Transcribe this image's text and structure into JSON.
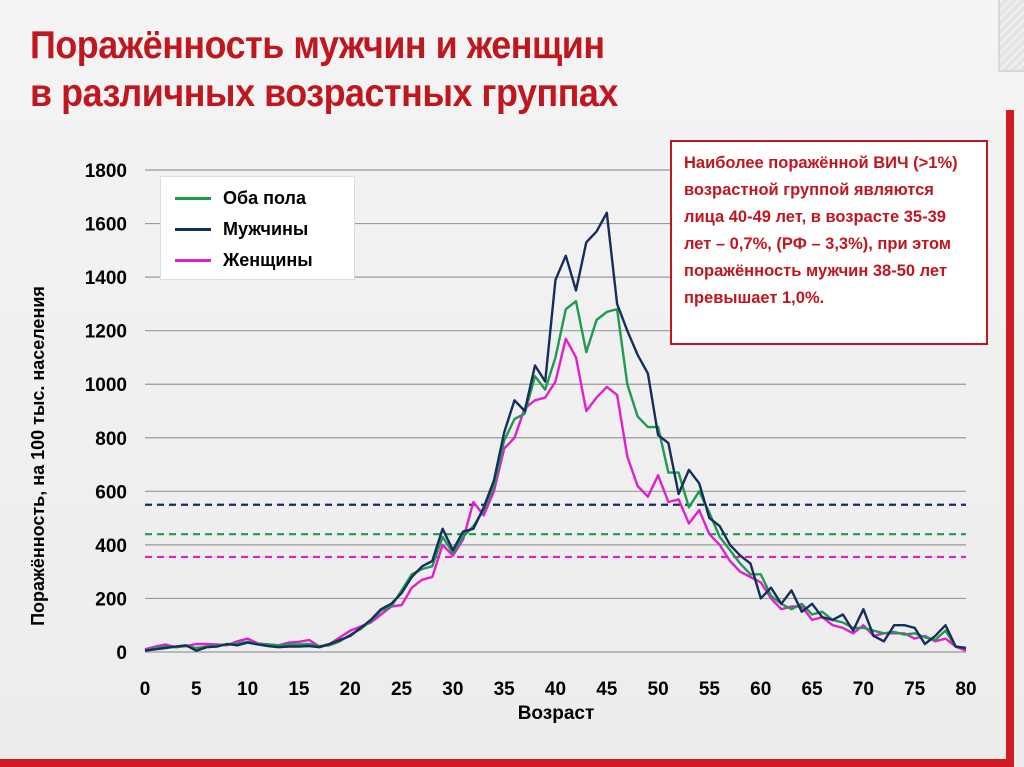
{
  "slide": {
    "title_line1": "Поражённость мужчин и женщин",
    "title_line2": "в различных возрастных группах",
    "infobox_text": "Наиболее поражённой ВИЧ (>1%) возрастной группой являются лица 40-49 лет, в возрасте 35-39 лет – 0,7%, (РФ – 3,3%),  при этом поражённость мужчин 38-50 лет превышает 1,0%."
  },
  "colors": {
    "accent_red": "#c0161e",
    "both": "#1f9a4f",
    "men": "#152f5c",
    "women": "#e020d0"
  },
  "chart_data": {
    "type": "line",
    "title": "",
    "xlabel": "Возраст",
    "ylabel": "Поражённость, на 100 тыс. населения",
    "xlim": [
      0,
      80
    ],
    "ylim": [
      0,
      1800
    ],
    "xticks": [
      0,
      5,
      10,
      15,
      20,
      25,
      30,
      35,
      40,
      45,
      50,
      55,
      60,
      65,
      70,
      75,
      80
    ],
    "yticks": [
      0,
      200,
      400,
      600,
      800,
      1000,
      1200,
      1400,
      1600,
      1800
    ],
    "grid": "horizontal",
    "legend": "top-left",
    "series": [
      {
        "name": "Оба пола",
        "color": "#1f9a4f",
        "x": [
          0,
          1,
          2,
          3,
          4,
          5,
          6,
          7,
          8,
          9,
          10,
          11,
          12,
          13,
          14,
          15,
          16,
          17,
          18,
          19,
          20,
          21,
          22,
          23,
          24,
          25,
          26,
          27,
          28,
          29,
          30,
          31,
          32,
          33,
          34,
          35,
          36,
          37,
          38,
          39,
          40,
          41,
          42,
          43,
          44,
          45,
          46,
          47,
          48,
          49,
          50,
          51,
          52,
          53,
          54,
          55,
          56,
          57,
          58,
          59,
          60,
          61,
          62,
          63,
          64,
          65,
          66,
          67,
          68,
          69,
          70,
          71,
          72,
          73,
          74,
          75,
          76,
          77,
          78,
          79,
          80
        ],
        "values": [
          5,
          15,
          20,
          18,
          22,
          15,
          20,
          25,
          28,
          32,
          38,
          30,
          28,
          25,
          28,
          28,
          30,
          22,
          25,
          40,
          65,
          85,
          115,
          155,
          170,
          230,
          290,
          310,
          320,
          430,
          370,
          430,
          470,
          530,
          620,
          790,
          870,
          890,
          1030,
          980,
          1100,
          1280,
          1310,
          1120,
          1240,
          1270,
          1280,
          1000,
          880,
          840,
          840,
          670,
          670,
          540,
          600,
          520,
          430,
          380,
          330,
          290,
          290,
          210,
          180,
          160,
          180,
          140,
          150,
          120,
          110,
          90,
          90,
          80,
          70,
          75,
          65,
          70,
          55,
          45,
          80,
          20,
          15
        ]
      },
      {
        "name": "Мужчины",
        "color": "#152f5c",
        "x": [
          0,
          1,
          2,
          3,
          4,
          5,
          6,
          7,
          8,
          9,
          10,
          11,
          12,
          13,
          14,
          15,
          16,
          17,
          18,
          19,
          20,
          21,
          22,
          23,
          24,
          25,
          26,
          27,
          28,
          29,
          30,
          31,
          32,
          33,
          34,
          35,
          36,
          37,
          38,
          39,
          40,
          41,
          42,
          43,
          44,
          45,
          46,
          47,
          48,
          49,
          50,
          51,
          52,
          53,
          54,
          55,
          56,
          57,
          58,
          59,
          60,
          61,
          62,
          63,
          64,
          65,
          66,
          67,
          68,
          69,
          70,
          71,
          72,
          73,
          74,
          75,
          76,
          77,
          78,
          79,
          80
        ],
        "values": [
          5,
          10,
          15,
          20,
          25,
          5,
          18,
          20,
          30,
          25,
          35,
          28,
          22,
          18,
          20,
          20,
          22,
          18,
          30,
          45,
          60,
          90,
          120,
          160,
          180,
          220,
          280,
          320,
          340,
          460,
          380,
          450,
          460,
          540,
          640,
          820,
          940,
          900,
          1070,
          1010,
          1390,
          1480,
          1350,
          1530,
          1570,
          1640,
          1300,
          1200,
          1110,
          1040,
          810,
          780,
          590,
          680,
          630,
          500,
          470,
          400,
          360,
          330,
          200,
          240,
          180,
          230,
          150,
          180,
          130,
          120,
          140,
          80,
          160,
          60,
          40,
          100,
          100,
          90,
          30,
          60,
          100,
          20,
          15
        ]
      },
      {
        "name": "Женщины",
        "color": "#e020d0",
        "x": [
          0,
          1,
          2,
          3,
          4,
          5,
          6,
          7,
          8,
          9,
          10,
          11,
          12,
          13,
          14,
          15,
          16,
          17,
          18,
          19,
          20,
          21,
          22,
          23,
          24,
          25,
          26,
          27,
          28,
          29,
          30,
          31,
          32,
          33,
          34,
          35,
          36,
          37,
          38,
          39,
          40,
          41,
          42,
          43,
          44,
          45,
          46,
          47,
          48,
          49,
          50,
          51,
          52,
          53,
          54,
          55,
          56,
          57,
          58,
          59,
          60,
          61,
          62,
          63,
          64,
          65,
          66,
          67,
          68,
          69,
          70,
          71,
          72,
          73,
          74,
          75,
          76,
          77,
          78,
          79,
          80
        ],
        "values": [
          10,
          20,
          28,
          18,
          22,
          30,
          30,
          28,
          25,
          40,
          50,
          32,
          28,
          25,
          35,
          38,
          45,
          20,
          30,
          55,
          80,
          95,
          110,
          140,
          170,
          175,
          240,
          270,
          280,
          400,
          360,
          420,
          560,
          510,
          600,
          760,
          800,
          910,
          940,
          950,
          1010,
          1170,
          1100,
          900,
          950,
          990,
          960,
          730,
          620,
          580,
          660,
          560,
          570,
          480,
          530,
          440,
          400,
          340,
          300,
          280,
          260,
          200,
          160,
          170,
          170,
          120,
          130,
          100,
          90,
          70,
          100,
          60,
          70,
          70,
          70,
          50,
          60,
          40,
          50,
          20,
          5
        ]
      }
    ],
    "reference_lines": [
      {
        "value": 550,
        "color": "#152f5c",
        "style": "dashed"
      },
      {
        "value": 440,
        "color": "#1f9a4f",
        "style": "dashed"
      },
      {
        "value": 355,
        "color": "#e020d0",
        "style": "dashed"
      }
    ]
  }
}
